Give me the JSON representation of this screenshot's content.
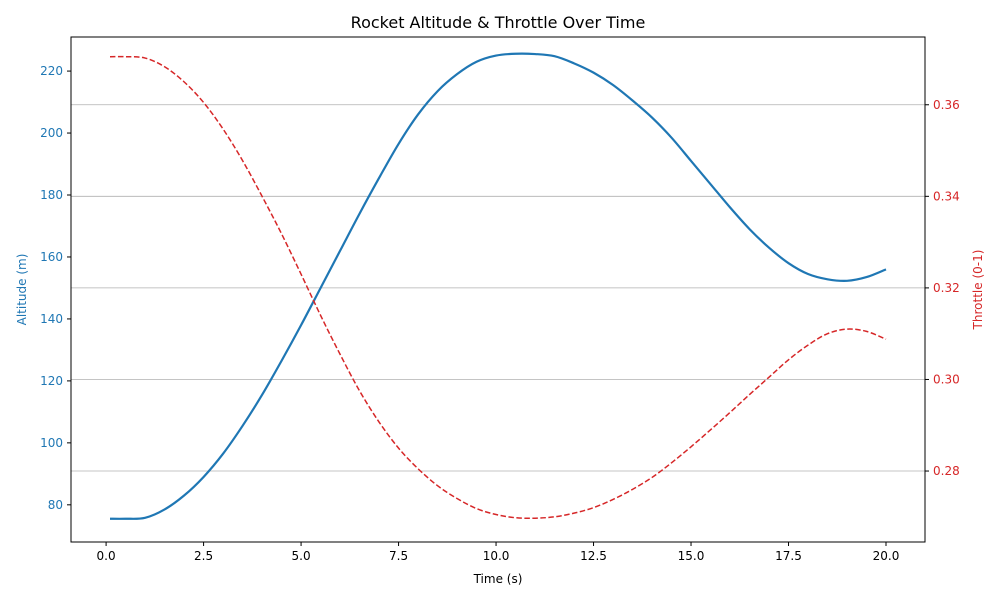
{
  "chart_data": {
    "type": "line",
    "title": "Rocket Altitude & Throttle Over Time",
    "xlabel": "Time (s)",
    "ylabel_left": "Altitude (m)",
    "ylabel_right": "Throttle (0-1)",
    "xlim": [
      -0.9,
      21.0
    ],
    "ylim_left": [
      68.0,
      231.0
    ],
    "ylim_right": [
      0.2645,
      0.3748
    ],
    "x_ticks": [
      0.0,
      2.5,
      5.0,
      7.5,
      10.0,
      12.5,
      15.0,
      17.5,
      20.0
    ],
    "x_tick_labels": [
      "0.0",
      "2.5",
      "5.0",
      "7.5",
      "10.0",
      "12.5",
      "15.0",
      "17.5",
      "20.0"
    ],
    "y_left_ticks": [
      80,
      100,
      120,
      140,
      160,
      180,
      200,
      220
    ],
    "y_left_tick_labels": [
      "80",
      "100",
      "120",
      "140",
      "160",
      "180",
      "200",
      "220"
    ],
    "y_right_ticks": [
      0.28,
      0.3,
      0.32,
      0.34,
      0.36
    ],
    "y_right_tick_labels": [
      "0.28",
      "0.30",
      "0.32",
      "0.34",
      "0.36"
    ],
    "grid": "horizontal (right axis ticks)",
    "colors": {
      "altitude": "#1f77b4",
      "throttle": "#d62728",
      "grid": "#b0b0b0"
    },
    "series": [
      {
        "axis": "left",
        "style": "solid",
        "x": [
          0.1,
          0.5,
          1.0,
          1.5,
          2.0,
          2.5,
          3.0,
          3.5,
          4.0,
          4.5,
          5.0,
          5.5,
          6.0,
          6.5,
          7.0,
          7.5,
          8.0,
          8.5,
          9.0,
          9.5,
          10.0,
          10.5,
          11.0,
          11.5,
          12.0,
          12.5,
          13.0,
          13.5,
          14.0,
          14.5,
          15.0,
          15.5,
          16.0,
          16.5,
          17.0,
          17.5,
          18.0,
          18.5,
          19.0,
          19.5,
          20.0
        ],
        "y": [
          75.5,
          75.5,
          75.8,
          78.5,
          83.0,
          89.0,
          96.5,
          105.5,
          115.5,
          126.5,
          138.0,
          150.0,
          162.0,
          174.0,
          185.5,
          196.5,
          206.0,
          213.5,
          219.0,
          223.0,
          225.0,
          225.6,
          225.5,
          224.8,
          222.5,
          219.5,
          215.5,
          210.5,
          205.0,
          198.5,
          191.0,
          183.5,
          176.0,
          169.0,
          163.0,
          158.0,
          154.5,
          152.8,
          152.3,
          153.5,
          156.0
        ]
      },
      {
        "axis": "right",
        "style": "dashed",
        "x": [
          0.1,
          0.5,
          1.0,
          1.5,
          2.0,
          2.5,
          3.0,
          3.5,
          4.0,
          4.5,
          5.0,
          5.5,
          6.0,
          6.5,
          7.0,
          7.5,
          8.0,
          8.5,
          9.0,
          9.5,
          10.0,
          10.5,
          11.0,
          11.5,
          12.0,
          12.5,
          13.0,
          13.5,
          14.0,
          14.5,
          15.0,
          15.5,
          16.0,
          16.5,
          17.0,
          17.5,
          18.0,
          18.5,
          19.0,
          19.5,
          20.0
        ],
        "y": [
          0.3705,
          0.3705,
          0.3702,
          0.3683,
          0.365,
          0.3605,
          0.3547,
          0.3478,
          0.34,
          0.3318,
          0.323,
          0.314,
          0.3055,
          0.2975,
          0.2907,
          0.285,
          0.2805,
          0.2768,
          0.274,
          0.2718,
          0.2705,
          0.2698,
          0.2697,
          0.27,
          0.2708,
          0.272,
          0.2738,
          0.276,
          0.2786,
          0.2818,
          0.2853,
          0.289,
          0.2928,
          0.2967,
          0.3005,
          0.3043,
          0.3075,
          0.31,
          0.311,
          0.3105,
          0.3088
        ]
      }
    ]
  }
}
